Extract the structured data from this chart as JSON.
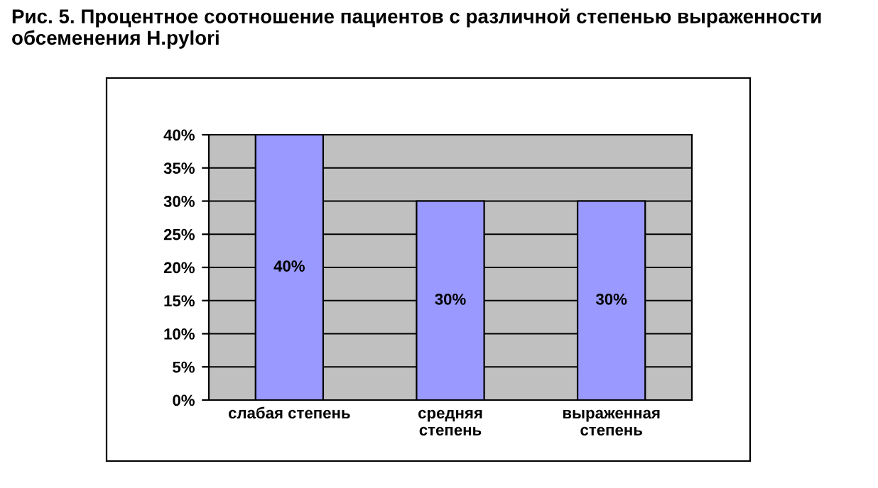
{
  "chart_data": {
    "type": "bar",
    "title": "Рис. 5. Процентное соотношение пациентов с различной степенью выраженности обсеменения H.pylori",
    "categories": [
      "слабая степень",
      "средняя\nстепень",
      "выраженная\nстепень"
    ],
    "values": [
      40,
      30,
      30
    ],
    "color": "#9999ff",
    "value_labels": [
      "40%",
      "30%",
      "30%"
    ],
    "ylim": [
      0,
      40
    ],
    "yticks": [
      {
        "value": 0,
        "label": "0%"
      },
      {
        "value": 5,
        "label": "5%"
      },
      {
        "value": 10,
        "label": "10%"
      },
      {
        "value": 15,
        "label": "15%"
      },
      {
        "value": 20,
        "label": "20%"
      },
      {
        "value": 25,
        "label": "25%"
      },
      {
        "value": 30,
        "label": "30%"
      },
      {
        "value": 35,
        "label": "35%"
      },
      {
        "value": 40,
        "label": "40%"
      }
    ],
    "grid": "y",
    "legend": false
  }
}
